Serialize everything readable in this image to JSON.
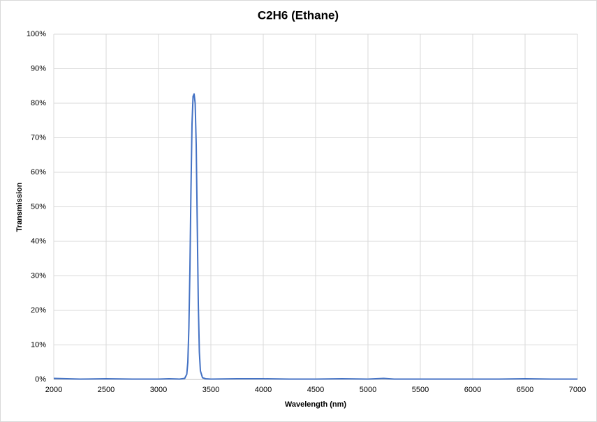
{
  "chart_data": {
    "type": "line",
    "title": "C2H6 (Ethane)",
    "x_label": "Wavelength (nm)",
    "y_label": "Transmission",
    "x": [
      2000,
      2250,
      2500,
      2750,
      3000,
      3100,
      3200,
      3250,
      3270,
      3280,
      3290,
      3300,
      3310,
      3320,
      3330,
      3340,
      3350,
      3360,
      3370,
      3380,
      3390,
      3400,
      3420,
      3450,
      3500,
      3750,
      4000,
      4250,
      4500,
      4750,
      5000,
      5150,
      5250,
      5500,
      5750,
      6000,
      6250,
      6500,
      6750,
      7000
    ],
    "values": [
      0.3,
      0.1,
      0.2,
      0.1,
      0.1,
      0.2,
      0.1,
      0.3,
      1.5,
      5,
      15,
      32,
      55,
      74,
      82,
      82.7,
      80,
      68,
      45,
      22,
      8,
      2.5,
      0.5,
      0.2,
      0.1,
      0.2,
      0.2,
      0.1,
      0.1,
      0.2,
      0.1,
      0.3,
      0.1,
      0.1,
      0.1,
      0.1,
      0.1,
      0.2,
      0.1,
      0.1
    ],
    "color": "#4472c4",
    "xlim": [
      2000,
      7000
    ],
    "xticks": [
      2000,
      2500,
      3000,
      3500,
      4000,
      4500,
      5000,
      5500,
      6000,
      6500,
      7000
    ],
    "ylim": [
      0,
      100
    ],
    "yticks": [
      {
        "value": 0,
        "label": "0%"
      },
      {
        "value": 10,
        "label": "10%"
      },
      {
        "value": 20,
        "label": "20%"
      },
      {
        "value": 30,
        "label": "30%"
      },
      {
        "value": 40,
        "label": "40%"
      },
      {
        "value": 50,
        "label": "50%"
      },
      {
        "value": 60,
        "label": "60%"
      },
      {
        "value": 70,
        "label": "70%"
      },
      {
        "value": 80,
        "label": "80%"
      },
      {
        "value": 90,
        "label": "90%"
      },
      {
        "value": 100,
        "label": "100%"
      }
    ],
    "grid": true
  }
}
